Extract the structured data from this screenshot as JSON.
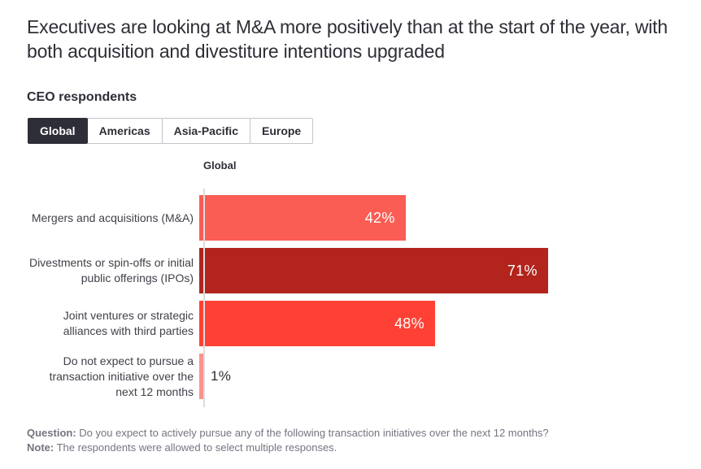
{
  "title": "Executives are looking at M&A more positively than at the start of the year, with both acquisition and divestiture intentions upgraded",
  "subtitle": "CEO respondents",
  "tabs": [
    {
      "label": "Global",
      "selected": true
    },
    {
      "label": "Americas",
      "selected": false
    },
    {
      "label": "Asia-Pacific",
      "selected": false
    },
    {
      "label": "Europe",
      "selected": false
    }
  ],
  "column_header": "Global",
  "chart_data": {
    "type": "bar",
    "orientation": "horizontal",
    "group": "Global",
    "categories": [
      "Mergers and acquisitions (M&A)",
      "Divestments or spin-offs or initial public offerings (IPOs)",
      "Joint ventures or strategic alliances with third parties",
      "Do not expect to pursue a transaction initiative over the next 12 months"
    ],
    "values": [
      42,
      71,
      48,
      1
    ],
    "value_labels": [
      "42%",
      "71%",
      "48%",
      "1%"
    ],
    "bar_colors": [
      "#f95d54",
      "#b2241c",
      "#fe4134",
      "#f9938c"
    ],
    "unit": "%",
    "xlim": [
      0,
      100
    ],
    "grid": false,
    "legend": "none"
  },
  "footnote": {
    "question_label": "Question:",
    "question_text": " Do you expect to actively pursue any of the following transaction initiatives over the next 12 months?",
    "note_label": "Note:",
    "note_text": " The respondents were allowed to select multiple responses."
  },
  "colors": {
    "text_dark": "#2e2e38",
    "text_gray": "#747480",
    "axis_line": "#dcdce0",
    "tab_selected_bg": "#2e2e38",
    "tab_border": "#c4c4cd"
  }
}
